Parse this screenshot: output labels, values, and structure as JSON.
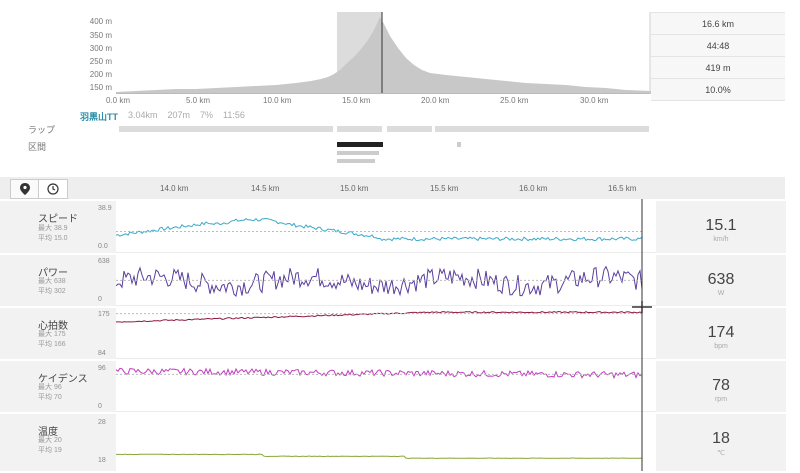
{
  "elevation": {
    "y_ticks": [
      "400 m",
      "350 m",
      "300 m",
      "250 m",
      "200 m",
      "150 m"
    ],
    "x_ticks": [
      "0.0 km",
      "5.0 km",
      "10.0 km",
      "15.0 km",
      "20.0 km",
      "25.0 km",
      "30.0 km"
    ],
    "summary": [
      "16.6 km",
      "44:48",
      "419 m",
      "10.0%"
    ]
  },
  "lap": {
    "label": "ラップ",
    "segment_label": "区間",
    "name": "羽黒山TT",
    "distance": "3.04km",
    "gain": "207m",
    "grade": "7%",
    "time": "11:56"
  },
  "toolbar": {
    "pin_icon": "map-pin-icon",
    "clock_icon": "clock-icon"
  },
  "detail_axis": [
    "14.0 km",
    "14.5 km",
    "15.0 km",
    "15.5 km",
    "16.0 km",
    "16.5 km"
  ],
  "metrics": [
    {
      "key": "speed",
      "name": "スピード",
      "max": "最大 38.9",
      "avg": "平均 15.0",
      "value": "15.1",
      "unit": "km/h",
      "ymax": "38.9",
      "ymin": "0.0",
      "color": "#3aa9c9"
    },
    {
      "key": "power",
      "name": "パワー",
      "max": "最大 638",
      "avg": "平均 302",
      "value": "638",
      "unit": "W",
      "ymax": "638",
      "ymin": "0",
      "color": "#5a3d9e"
    },
    {
      "key": "hr",
      "name": "心拍数",
      "max": "最大 175",
      "avg": "平均 166",
      "value": "174",
      "unit": "bpm",
      "ymax": "175",
      "ymin": "84",
      "color": "#8c1a3c"
    },
    {
      "key": "cadence",
      "name": "ケイデンス",
      "max": "最大 96",
      "avg": "平均 70",
      "value": "78",
      "unit": "rpm",
      "ymax": "96",
      "ymin": "0",
      "color": "#c23ac2"
    },
    {
      "key": "temp",
      "name": "温度",
      "max": "最大 20",
      "avg": "平均 19",
      "value": "18",
      "unit": "℃",
      "ymax": "28",
      "ymin": "18",
      "color": "#8aa63a"
    }
  ]
}
